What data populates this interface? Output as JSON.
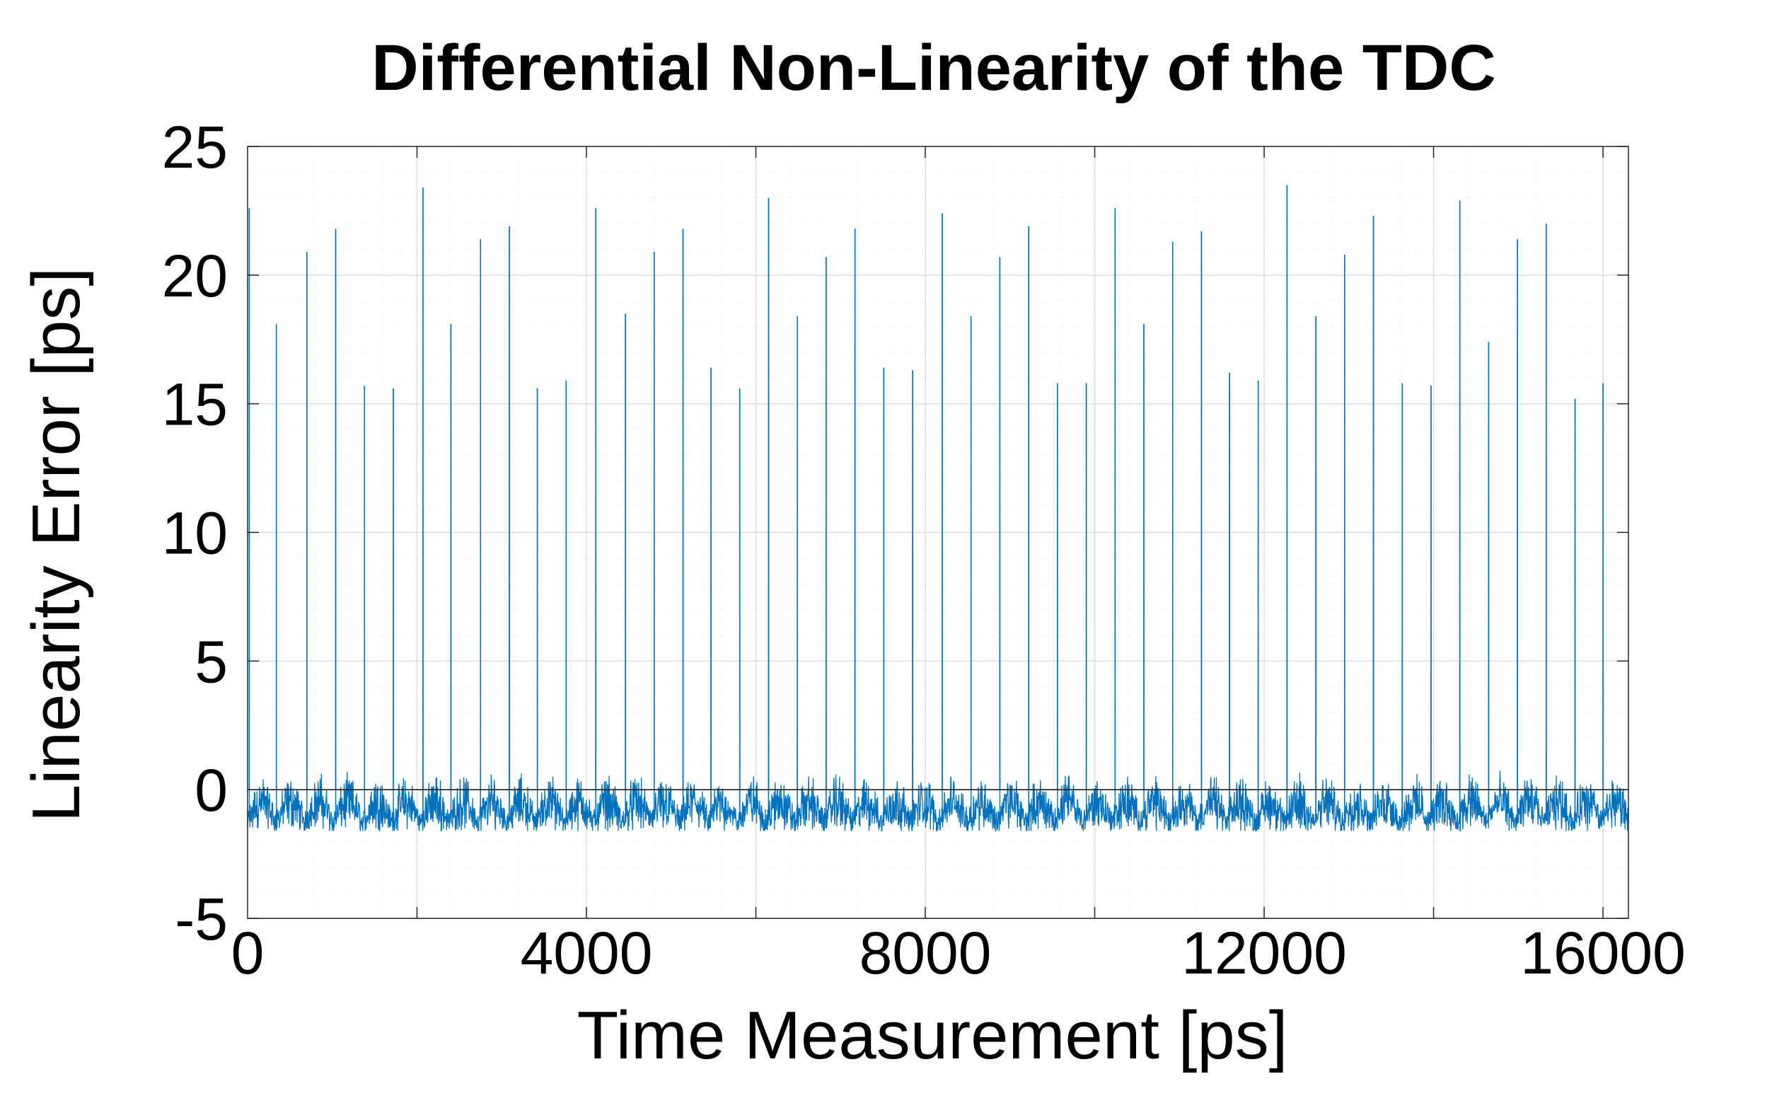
{
  "chart_data": {
    "type": "line",
    "title": "Differential Non-Linearity of the TDC",
    "xlabel": "Time Measurement [ps]",
    "ylabel": "Linearity Error [ps]",
    "xlim": [
      0,
      16300
    ],
    "ylim": [
      -5,
      25
    ],
    "xticks": [
      0,
      4000,
      8000,
      12000,
      16000
    ],
    "yticks": [
      -5,
      0,
      5,
      10,
      15,
      20,
      25
    ],
    "xtick_labels": [
      "0",
      "4000",
      "8000",
      "12000",
      "16000"
    ],
    "ytick_labels": [
      "-5",
      "0",
      "5",
      "10",
      "15",
      "20",
      "25"
    ],
    "grid": true,
    "minor_grid": true,
    "baseline": 0,
    "series_color": "#0072BD",
    "series": [
      {
        "peaks": [
          {
            "x": 20,
            "y": 22.6
          },
          {
            "x": 340,
            "y": 18.1
          },
          {
            "x": 700,
            "y": 20.9
          },
          {
            "x": 1040,
            "y": 21.8
          },
          {
            "x": 1380,
            "y": 15.7
          },
          {
            "x": 1720,
            "y": 15.6
          },
          {
            "x": 2070,
            "y": 23.4
          },
          {
            "x": 2400,
            "y": 18.1
          },
          {
            "x": 2750,
            "y": 21.4
          },
          {
            "x": 3090,
            "y": 21.9
          },
          {
            "x": 3420,
            "y": 15.6
          },
          {
            "x": 3760,
            "y": 15.9
          },
          {
            "x": 4110,
            "y": 22.6
          },
          {
            "x": 4460,
            "y": 18.5
          },
          {
            "x": 4800,
            "y": 20.9
          },
          {
            "x": 5140,
            "y": 21.8
          },
          {
            "x": 5470,
            "y": 16.4
          },
          {
            "x": 5810,
            "y": 15.6
          },
          {
            "x": 6150,
            "y": 23.0
          },
          {
            "x": 6490,
            "y": 18.4
          },
          {
            "x": 6830,
            "y": 20.7
          },
          {
            "x": 7170,
            "y": 21.8
          },
          {
            "x": 7510,
            "y": 16.4
          },
          {
            "x": 7850,
            "y": 16.3
          },
          {
            "x": 8200,
            "y": 22.4
          },
          {
            "x": 8540,
            "y": 18.4
          },
          {
            "x": 8880,
            "y": 20.7
          },
          {
            "x": 9220,
            "y": 21.9
          },
          {
            "x": 9560,
            "y": 15.8
          },
          {
            "x": 9900,
            "y": 15.8
          },
          {
            "x": 10240,
            "y": 22.6
          },
          {
            "x": 10580,
            "y": 18.1
          },
          {
            "x": 10920,
            "y": 21.3
          },
          {
            "x": 11260,
            "y": 21.7
          },
          {
            "x": 11590,
            "y": 16.2
          },
          {
            "x": 11930,
            "y": 15.9
          },
          {
            "x": 12270,
            "y": 23.5
          },
          {
            "x": 12610,
            "y": 18.4
          },
          {
            "x": 12950,
            "y": 20.8
          },
          {
            "x": 13290,
            "y": 22.3
          },
          {
            "x": 13630,
            "y": 15.8
          },
          {
            "x": 13970,
            "y": 15.7
          },
          {
            "x": 14310,
            "y": 22.9
          },
          {
            "x": 14650,
            "y": 17.4
          },
          {
            "x": 14990,
            "y": 21.4
          },
          {
            "x": 15330,
            "y": 22.0
          },
          {
            "x": 15670,
            "y": 15.2
          },
          {
            "x": 16000,
            "y": 15.8
          }
        ],
        "baseline_range": [
          -1.6,
          1.5
        ]
      }
    ]
  }
}
